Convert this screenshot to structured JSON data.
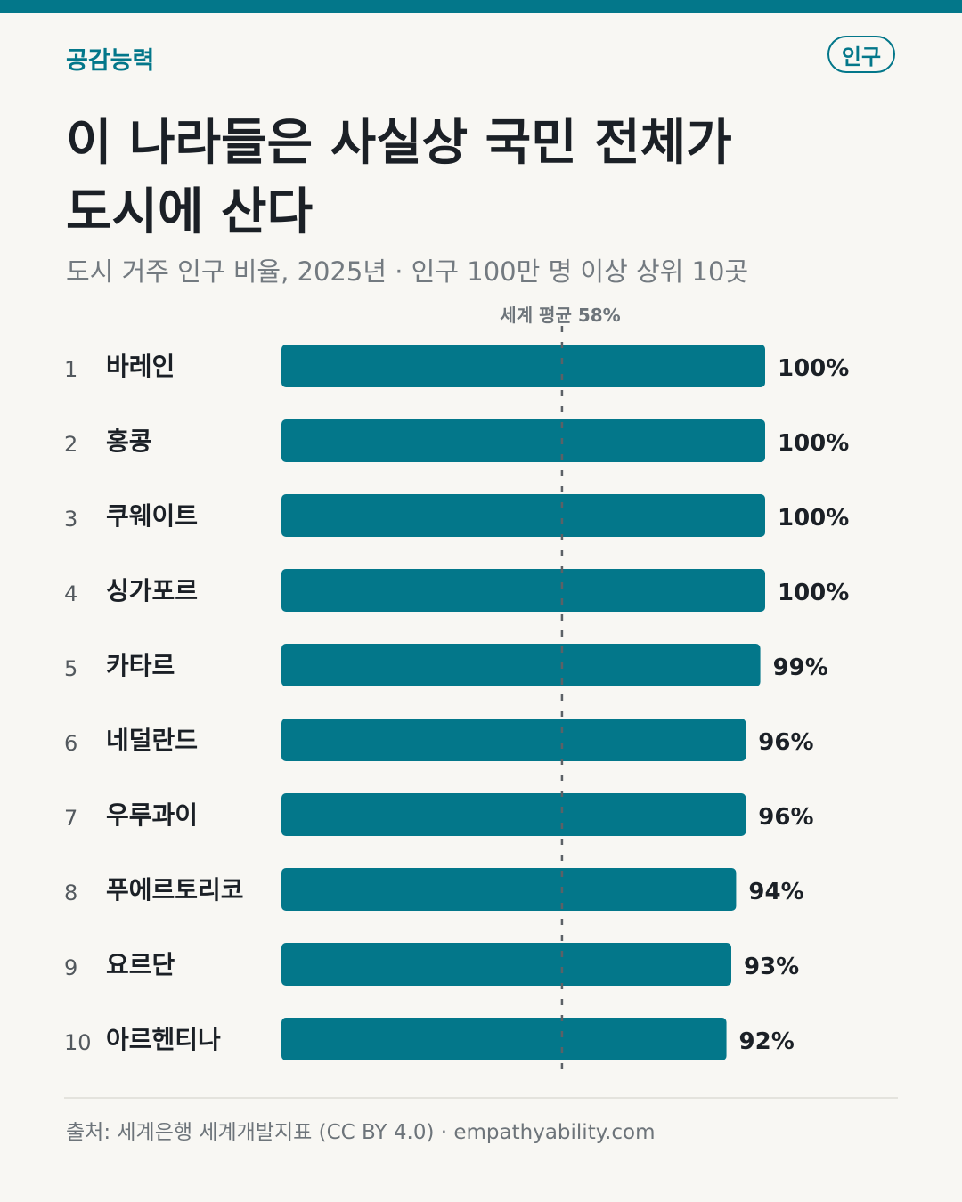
{
  "header": {
    "brand": "공감능력",
    "tag": "인구",
    "title_line1": "이 나라들은 사실상 국민 전체가",
    "title_line2": "도시에 산다",
    "subtitle": "도시 거주 인구 비율, 2025년 · 인구 100만 명 이상 상위 10곳"
  },
  "chart_data": {
    "type": "bar",
    "orientation": "horizontal",
    "categories": [
      "바레인",
      "홍콩",
      "쿠웨이트",
      "싱가포르",
      "카타르",
      "네덜란드",
      "우루과이",
      "푸에르토리코",
      "요르단",
      "아르헨티나"
    ],
    "ranks": [
      "1",
      "2",
      "3",
      "4",
      "5",
      "6",
      "7",
      "8",
      "9",
      "10"
    ],
    "values": [
      100,
      100,
      100,
      100,
      99,
      96,
      96,
      94,
      93,
      92
    ],
    "value_labels": [
      "100%",
      "100%",
      "100%",
      "100%",
      "99%",
      "96%",
      "96%",
      "94%",
      "93%",
      "92%"
    ],
    "xlim": [
      0,
      100
    ],
    "reference_line": {
      "label": "세계 평균 58%",
      "value": 58
    },
    "bar_color": "#03778a",
    "grid": false
  },
  "footer": {
    "source": "출처: 세계은행 세계개발지표 (CC BY 4.0) · empathyability.com"
  },
  "colors": {
    "accent": "#03778a",
    "background": "#f8f7f3",
    "text": "#1b2026",
    "muted": "#737a80"
  }
}
